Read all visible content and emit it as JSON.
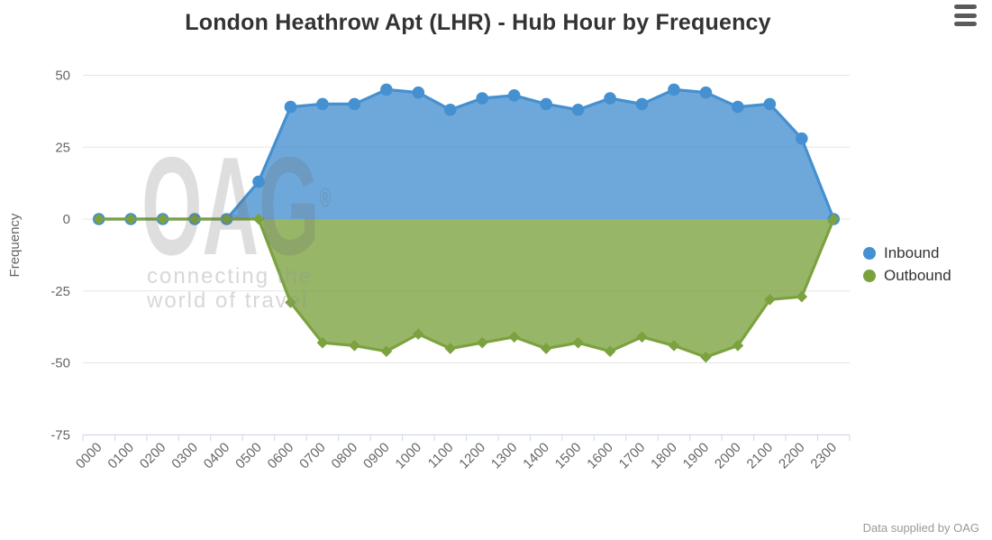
{
  "title": "London Heathrow Apt (LHR) - Hub Hour by Frequency",
  "icons": {
    "context_menu": "hamburger-menu-icon"
  },
  "y_axis": {
    "title": "Frequency",
    "ticks": [
      50,
      25,
      0,
      -25,
      -50,
      -75
    ]
  },
  "x_axis": {
    "categories": [
      "0000",
      "0100",
      "0200",
      "0300",
      "0400",
      "0500",
      "0600",
      "0700",
      "0800",
      "0900",
      "1000",
      "1100",
      "1200",
      "1300",
      "1400",
      "1500",
      "1600",
      "1700",
      "1800",
      "1900",
      "2000",
      "2100",
      "2200",
      "2300"
    ]
  },
  "legend": {
    "items": [
      {
        "label": "Inbound",
        "color": "#4590d0",
        "marker": "circle"
      },
      {
        "label": "Outbound",
        "color": "#7ba23e",
        "marker": "circle"
      }
    ]
  },
  "watermark": {
    "logo": "OAG",
    "reg": "®",
    "tagline_line1": "connecting the",
    "tagline_line2": "world of travel"
  },
  "credits": "Data supplied by OAG",
  "colors": {
    "inbound": "#4590d0",
    "outbound": "#7ba23e",
    "grid_line": "#e6e6e6",
    "axis_line": "#ccd6eb",
    "axis_label": "#666666",
    "title_text": "#333333",
    "legend_text": "#333333",
    "credits_text": "#999999",
    "menu_icon": "#5a5a5a"
  },
  "chart_data": {
    "type": "area",
    "title": "London Heathrow Apt (LHR) - Hub Hour by Frequency",
    "xlabel": "",
    "ylabel": "Frequency",
    "ylim": [
      -75,
      50
    ],
    "grid": true,
    "legend_position": "right",
    "categories": [
      "0000",
      "0100",
      "0200",
      "0300",
      "0400",
      "0500",
      "0600",
      "0700",
      "0800",
      "0900",
      "1000",
      "1100",
      "1200",
      "1300",
      "1400",
      "1500",
      "1600",
      "1700",
      "1800",
      "1900",
      "2000",
      "2100",
      "2200",
      "2300"
    ],
    "series": [
      {
        "name": "Inbound",
        "color": "#4590d0",
        "marker": "circle",
        "values": [
          0,
          0,
          0,
          0,
          0,
          13,
          39,
          40,
          40,
          45,
          44,
          38,
          42,
          43,
          40,
          38,
          42,
          40,
          45,
          44,
          39,
          40,
          28,
          0
        ]
      },
      {
        "name": "Outbound",
        "color": "#7ba23e",
        "marker": "diamond",
        "values": [
          0,
          0,
          0,
          0,
          0,
          0,
          -29,
          -43,
          -44,
          -46,
          -40,
          -45,
          -43,
          -41,
          -45,
          -43,
          -46,
          -41,
          -44,
          -48,
          -44,
          -28,
          -27,
          0
        ]
      }
    ]
  }
}
